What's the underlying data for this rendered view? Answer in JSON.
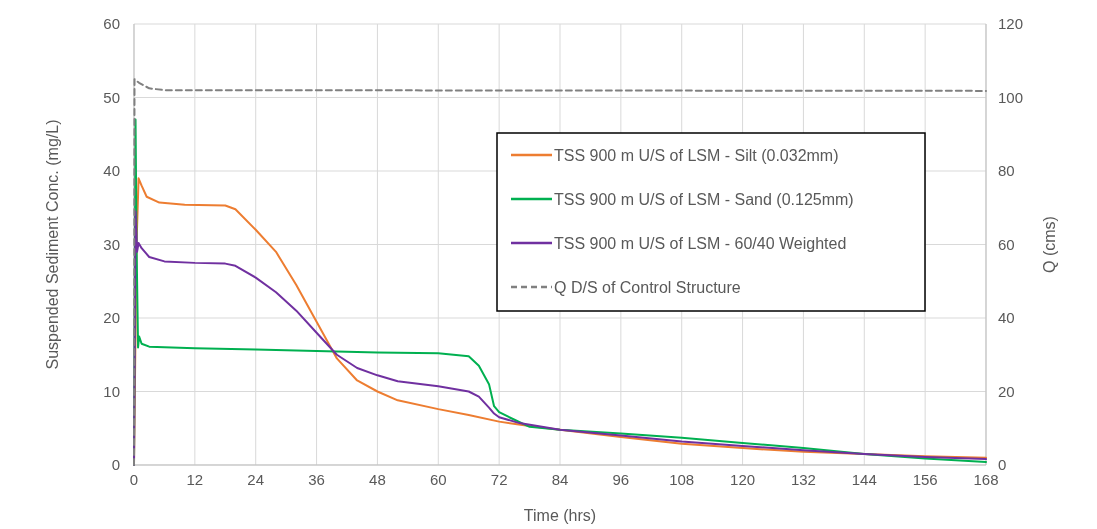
{
  "chart_data": {
    "type": "line",
    "xlabel": "Time (hrs)",
    "ylabel": "Suspended Sediment Conc. (mg/L)",
    "y2label": "Q (cms)",
    "xlim": [
      0,
      168
    ],
    "xticks": [
      0,
      12,
      24,
      36,
      48,
      60,
      72,
      84,
      96,
      108,
      120,
      132,
      144,
      156,
      168
    ],
    "ylim": [
      0,
      60
    ],
    "yticks": [
      0,
      10,
      20,
      30,
      40,
      50,
      60
    ],
    "y2lim": [
      0,
      120
    ],
    "y2ticks": [
      0,
      20,
      40,
      60,
      80,
      100,
      120
    ],
    "grid": true,
    "legend": "top right",
    "series": [
      {
        "name": "TSS 900 m U/S of LSM - Silt (0.032mm)",
        "color": "#ed7d31",
        "x": [
          0,
          0.5,
          0.9,
          1.5,
          2.5,
          5,
          10,
          18,
          20,
          24,
          28,
          32,
          36,
          40,
          44,
          48,
          52,
          60,
          66,
          72,
          78,
          84,
          96,
          108,
          120,
          132,
          144,
          156,
          168
        ],
        "values": [
          0,
          30,
          39,
          38,
          36.5,
          35.7,
          35.4,
          35.3,
          34.8,
          32,
          29,
          24.5,
          19.5,
          14.5,
          11.5,
          10,
          8.8,
          7.6,
          6.8,
          5.9,
          5.3,
          4.8,
          3.8,
          2.9,
          2.3,
          1.8,
          1.5,
          1.2,
          1.0
        ]
      },
      {
        "name": "TSS 900 m U/S of LSM - Sand (0.125mm)",
        "color": "#00b050",
        "x": [
          0,
          0.3,
          0.5,
          0.8,
          1,
          1.5,
          3,
          12,
          24,
          36,
          48,
          60,
          66,
          68,
          70,
          71,
          72,
          74,
          78,
          84,
          96,
          108,
          120,
          132,
          144,
          156,
          168
        ],
        "values": [
          0,
          47,
          30,
          16,
          17.5,
          16.5,
          16.1,
          15.9,
          15.7,
          15.5,
          15.3,
          15.2,
          14.8,
          13.5,
          11,
          8,
          7.2,
          6.5,
          5.2,
          4.8,
          4.3,
          3.7,
          3.0,
          2.3,
          1.5,
          0.9,
          0.4
        ]
      },
      {
        "name": "TSS 900 m U/S of LSM - 60/40 Weighted",
        "color": "#7030a0",
        "x": [
          0,
          0.3,
          0.6,
          0.9,
          1.5,
          3,
          6,
          12,
          18,
          20,
          24,
          28,
          32,
          36,
          40,
          44,
          48,
          52,
          60,
          66,
          68,
          70,
          71,
          72,
          76,
          84,
          96,
          108,
          120,
          132,
          144,
          156,
          168
        ],
        "values": [
          0,
          34.5,
          29,
          30.2,
          29.5,
          28.3,
          27.7,
          27.5,
          27.4,
          27.1,
          25.5,
          23.5,
          21,
          18,
          15,
          13.2,
          12.2,
          11.4,
          10.7,
          10,
          9.3,
          7.8,
          7,
          6.5,
          5.7,
          4.8,
          4.0,
          3.2,
          2.6,
          2.0,
          1.5,
          1.1,
          0.8
        ]
      },
      {
        "name": "Q D/S of Control Structure",
        "color": "#808080",
        "axis": "y2",
        "line_style": "dashed",
        "x": [
          0,
          0.1,
          1,
          3,
          6,
          168
        ],
        "values": [
          0,
          105,
          104,
          102.5,
          102,
          101.8
        ]
      }
    ]
  }
}
